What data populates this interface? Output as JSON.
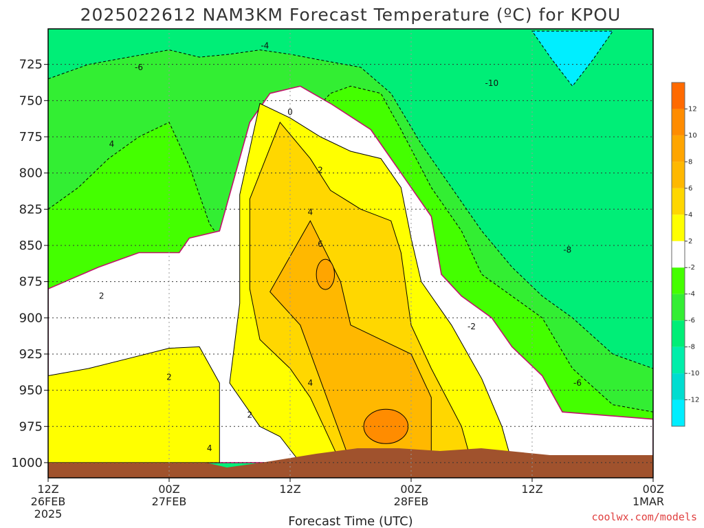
{
  "chart_data": {
    "type": "heatmap",
    "title": "2025022612 NAM3KM Forecast Temperature (ºC) for KPOU",
    "xlabel": "Forecast Time (UTC)",
    "ylabel": "",
    "x_ticks": [
      {
        "value": 0,
        "lines": [
          "12Z",
          "26FEB",
          "2025"
        ]
      },
      {
        "value": 12,
        "lines": [
          "00Z",
          "27FEB"
        ]
      },
      {
        "value": 24,
        "lines": [
          "12Z"
        ]
      },
      {
        "value": 36,
        "lines": [
          "00Z",
          "28FEB"
        ]
      },
      {
        "value": 48,
        "lines": [
          "12Z"
        ]
      },
      {
        "value": 60,
        "lines": [
          "00Z",
          "1MAR"
        ]
      }
    ],
    "xlim": [
      0,
      60
    ],
    "y_ticks": [
      "725",
      "750",
      "775",
      "800",
      "825",
      "850",
      "875",
      "900",
      "925",
      "950",
      "975",
      "1000"
    ],
    "ylim": [
      1010,
      700
    ],
    "grid": true,
    "colorbar": {
      "levels": [
        "12",
        "10",
        "8",
        "6",
        "4",
        "2",
        "-2",
        "-4",
        "-6",
        "-8",
        "-10",
        "-12"
      ],
      "colors": [
        "#ff6a00",
        "#ff8c00",
        "#ffa500",
        "#ffb800",
        "#ffd700",
        "#ffff00",
        "#ffffff",
        "#44ff00",
        "#33ee33",
        "#00ee77",
        "#00eeaa",
        "#00ddd0",
        "#00eeff"
      ]
    },
    "contour_labels": [
      {
        "text": "-4",
        "x": 21.5,
        "y": 712
      },
      {
        "text": "-6",
        "x": 9.0,
        "y": 727
      },
      {
        "text": "-10",
        "x": 44.0,
        "y": 738
      },
      {
        "text": "0",
        "x": 24.0,
        "y": 758
      },
      {
        "text": "4",
        "x": 6.3,
        "y": 780
      },
      {
        "text": "2",
        "x": 27.0,
        "y": 798
      },
      {
        "text": "4",
        "x": 26.0,
        "y": 827
      },
      {
        "text": "-8",
        "x": 51.5,
        "y": 853
      },
      {
        "text": "6",
        "x": 27.0,
        "y": 849
      },
      {
        "text": "2",
        "x": 5.3,
        "y": 885
      },
      {
        "text": "-2",
        "x": 42.0,
        "y": 906
      },
      {
        "text": "2",
        "x": 12.0,
        "y": 941
      },
      {
        "text": "-6",
        "x": 52.5,
        "y": 945
      },
      {
        "text": "4",
        "x": 26.0,
        "y": 945
      },
      {
        "text": "2",
        "x": 20.0,
        "y": 967
      },
      {
        "text": "4",
        "x": 16.0,
        "y": 990
      }
    ],
    "series": [
      {
        "level": "6",
        "polygon": [
          [
            26,
            833
          ],
          [
            29,
            875
          ],
          [
            30,
            905
          ],
          [
            33,
            915
          ],
          [
            36,
            925
          ],
          [
            38,
            955
          ],
          [
            38,
            1000
          ],
          [
            30,
            1000
          ],
          [
            25,
            905
          ],
          [
            22,
            882
          ]
        ]
      },
      {
        "level": "4",
        "polygon": [
          [
            23,
            765
          ],
          [
            26,
            790
          ],
          [
            28,
            812
          ],
          [
            31,
            825
          ],
          [
            34,
            833
          ],
          [
            35,
            855
          ],
          [
            36,
            905
          ],
          [
            38,
            935
          ],
          [
            41,
            975
          ],
          [
            42,
            1000
          ],
          [
            29,
            1000
          ],
          [
            26,
            955
          ],
          [
            24,
            935
          ],
          [
            21,
            915
          ],
          [
            20,
            880
          ],
          [
            20,
            818
          ]
        ]
      },
      {
        "level": "2",
        "polygon": [
          [
            21,
            752
          ],
          [
            24,
            762
          ],
          [
            27,
            775
          ],
          [
            30,
            785
          ],
          [
            33,
            790
          ],
          [
            35,
            810
          ],
          [
            36,
            845
          ],
          [
            37,
            875
          ],
          [
            40,
            905
          ],
          [
            43,
            942
          ],
          [
            45,
            975
          ],
          [
            46,
            1000
          ],
          [
            25,
            1000
          ],
          [
            23,
            982
          ],
          [
            21,
            975
          ],
          [
            18,
            945
          ],
          [
            19,
            890
          ],
          [
            19,
            815
          ]
        ]
      },
      {
        "level": "2b",
        "polygon": [
          [
            0,
            940
          ],
          [
            4,
            935
          ],
          [
            8,
            928
          ],
          [
            12,
            921
          ],
          [
            15,
            920
          ],
          [
            17,
            945
          ],
          [
            17,
            1000
          ],
          [
            0,
            1000
          ]
        ]
      },
      {
        "level": "-2",
        "polygon": [
          [
            0,
            880
          ],
          [
            5,
            865
          ],
          [
            9,
            855
          ],
          [
            13,
            855
          ],
          [
            14,
            845
          ],
          [
            17,
            840
          ],
          [
            18,
            815
          ],
          [
            20,
            765
          ],
          [
            22,
            745
          ],
          [
            25,
            740
          ],
          [
            28,
            752
          ],
          [
            32,
            770
          ],
          [
            35,
            800
          ],
          [
            38,
            830
          ],
          [
            39,
            870
          ],
          [
            41,
            885
          ],
          [
            44,
            900
          ],
          [
            46,
            920
          ],
          [
            49,
            940
          ],
          [
            51,
            965
          ],
          [
            60,
            970
          ],
          [
            60,
            1000
          ],
          [
            0,
            1000
          ]
        ]
      },
      {
        "level": "-4",
        "polygon": [
          [
            0,
            825
          ],
          [
            3,
            810
          ],
          [
            6,
            790
          ],
          [
            9,
            775
          ],
          [
            12,
            765
          ],
          [
            14,
            795
          ],
          [
            16,
            835
          ],
          [
            18,
            855
          ],
          [
            20,
            810
          ],
          [
            21,
            765
          ],
          [
            22,
            745
          ],
          [
            24,
            745
          ],
          [
            26,
            760
          ],
          [
            28,
            745
          ],
          [
            30,
            740
          ],
          [
            33,
            745
          ],
          [
            35,
            770
          ],
          [
            38,
            810
          ],
          [
            41,
            840
          ],
          [
            43,
            870
          ],
          [
            46,
            885
          ],
          [
            49,
            900
          ],
          [
            52,
            935
          ],
          [
            56,
            960
          ],
          [
            60,
            965
          ],
          [
            60,
            1000
          ],
          [
            0,
            1000
          ]
        ]
      },
      {
        "level": "-6",
        "polygon": [
          [
            0,
            735
          ],
          [
            4,
            725
          ],
          [
            8,
            720
          ],
          [
            12,
            715
          ],
          [
            15,
            720
          ],
          [
            18,
            718
          ],
          [
            21,
            715
          ],
          [
            24,
            718
          ],
          [
            27,
            722
          ],
          [
            31,
            727
          ],
          [
            34,
            745
          ],
          [
            37,
            780
          ],
          [
            40,
            810
          ],
          [
            43,
            840
          ],
          [
            46,
            865
          ],
          [
            49,
            885
          ],
          [
            52,
            900
          ],
          [
            56,
            925
          ],
          [
            60,
            935
          ],
          [
            60,
            1000
          ],
          [
            0,
            1000
          ]
        ]
      }
    ]
  },
  "footer": {
    "credit": "coolwx.com/models"
  }
}
